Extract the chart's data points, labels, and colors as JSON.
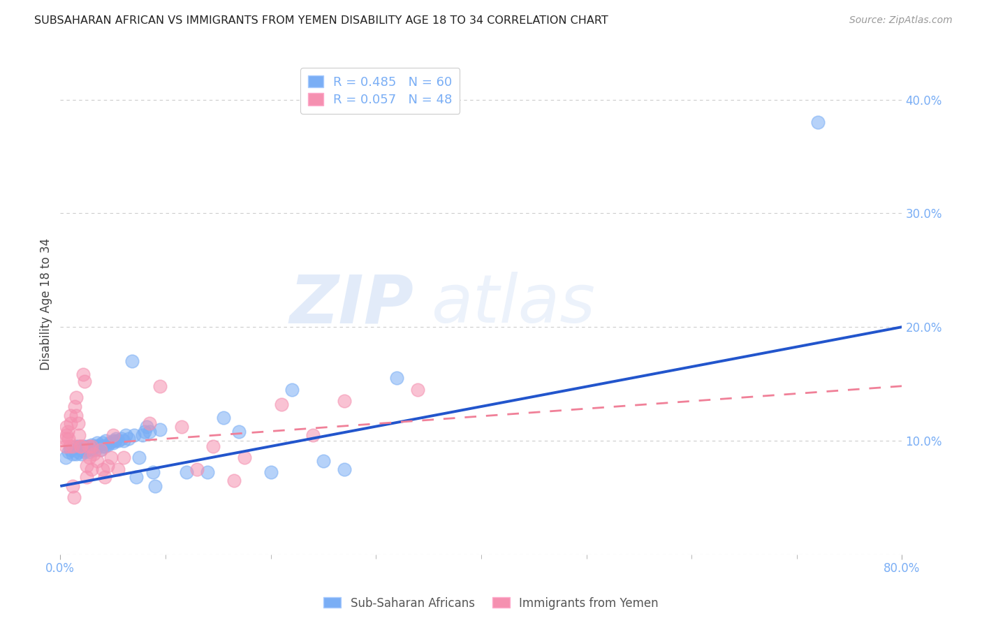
{
  "title": "SUBSAHARAN AFRICAN VS IMMIGRANTS FROM YEMEN DISABILITY AGE 18 TO 34 CORRELATION CHART",
  "source": "Source: ZipAtlas.com",
  "ylabel": "Disability Age 18 to 34",
  "xlim": [
    0.0,
    0.8
  ],
  "ylim": [
    0.0,
    0.44
  ],
  "ytick_vals": [
    0.0,
    0.1,
    0.2,
    0.3,
    0.4
  ],
  "ytick_labels_right": [
    "",
    "10.0%",
    "20.0%",
    "30.0%",
    "40.0%"
  ],
  "xtick_vals": [
    0.0,
    0.8
  ],
  "xtick_labels": [
    "0.0%",
    "80.0%"
  ],
  "legend_r1_r": "0.485",
  "legend_r1_n": "60",
  "legend_r2_r": "0.057",
  "legend_r2_n": "48",
  "blue_color": "#7aaef5",
  "pink_color": "#f590b0",
  "blue_line_color": "#2255cc",
  "pink_line_color": "#f08098",
  "grid_color": "#cccccc",
  "watermark_zip": "ZIP",
  "watermark_atlas": "atlas",
  "blue_x": [
    0.005,
    0.008,
    0.01,
    0.012,
    0.015,
    0.015,
    0.017,
    0.018,
    0.02,
    0.02,
    0.022,
    0.023,
    0.025,
    0.025,
    0.027,
    0.028,
    0.03,
    0.03,
    0.032,
    0.033,
    0.035,
    0.035,
    0.037,
    0.038,
    0.04,
    0.04,
    0.042,
    0.043,
    0.045,
    0.047,
    0.05,
    0.05,
    0.052,
    0.053,
    0.055,
    0.058,
    0.06,
    0.062,
    0.065,
    0.068,
    0.07,
    0.072,
    0.075,
    0.078,
    0.08,
    0.082,
    0.085,
    0.088,
    0.09,
    0.095,
    0.12,
    0.14,
    0.155,
    0.17,
    0.2,
    0.22,
    0.25,
    0.27,
    0.32,
    0.72
  ],
  "blue_y": [
    0.085,
    0.09,
    0.092,
    0.088,
    0.095,
    0.088,
    0.09,
    0.095,
    0.088,
    0.092,
    0.095,
    0.09,
    0.092,
    0.095,
    0.09,
    0.095,
    0.092,
    0.096,
    0.095,
    0.092,
    0.095,
    0.098,
    0.096,
    0.092,
    0.095,
    0.098,
    0.095,
    0.1,
    0.096,
    0.098,
    0.1,
    0.098,
    0.1,
    0.102,
    0.1,
    0.102,
    0.1,
    0.105,
    0.102,
    0.17,
    0.105,
    0.068,
    0.085,
    0.105,
    0.108,
    0.112,
    0.108,
    0.072,
    0.06,
    0.11,
    0.072,
    0.072,
    0.12,
    0.108,
    0.072,
    0.145,
    0.082,
    0.075,
    0.155,
    0.38
  ],
  "pink_x": [
    0.005,
    0.005,
    0.006,
    0.006,
    0.007,
    0.008,
    0.009,
    0.01,
    0.01,
    0.012,
    0.012,
    0.013,
    0.014,
    0.015,
    0.015,
    0.017,
    0.018,
    0.019,
    0.02,
    0.022,
    0.023,
    0.025,
    0.025,
    0.027,
    0.028,
    0.03,
    0.03,
    0.032,
    0.035,
    0.038,
    0.04,
    0.042,
    0.045,
    0.048,
    0.05,
    0.055,
    0.06,
    0.085,
    0.095,
    0.115,
    0.13,
    0.145,
    0.165,
    0.175,
    0.21,
    0.24,
    0.27,
    0.34
  ],
  "pink_y": [
    0.095,
    0.102,
    0.105,
    0.112,
    0.108,
    0.102,
    0.095,
    0.115,
    0.122,
    0.095,
    0.06,
    0.05,
    0.13,
    0.138,
    0.122,
    0.115,
    0.105,
    0.095,
    0.095,
    0.158,
    0.152,
    0.068,
    0.078,
    0.095,
    0.085,
    0.095,
    0.075,
    0.088,
    0.082,
    0.092,
    0.075,
    0.068,
    0.078,
    0.085,
    0.105,
    0.075,
    0.085,
    0.115,
    0.148,
    0.112,
    0.075,
    0.095,
    0.065,
    0.085,
    0.132,
    0.105,
    0.135,
    0.145
  ],
  "blue_line_x": [
    0.0,
    0.8
  ],
  "blue_line_y": [
    0.06,
    0.2
  ],
  "pink_line_x": [
    0.0,
    0.8
  ],
  "pink_line_y": [
    0.095,
    0.148
  ]
}
